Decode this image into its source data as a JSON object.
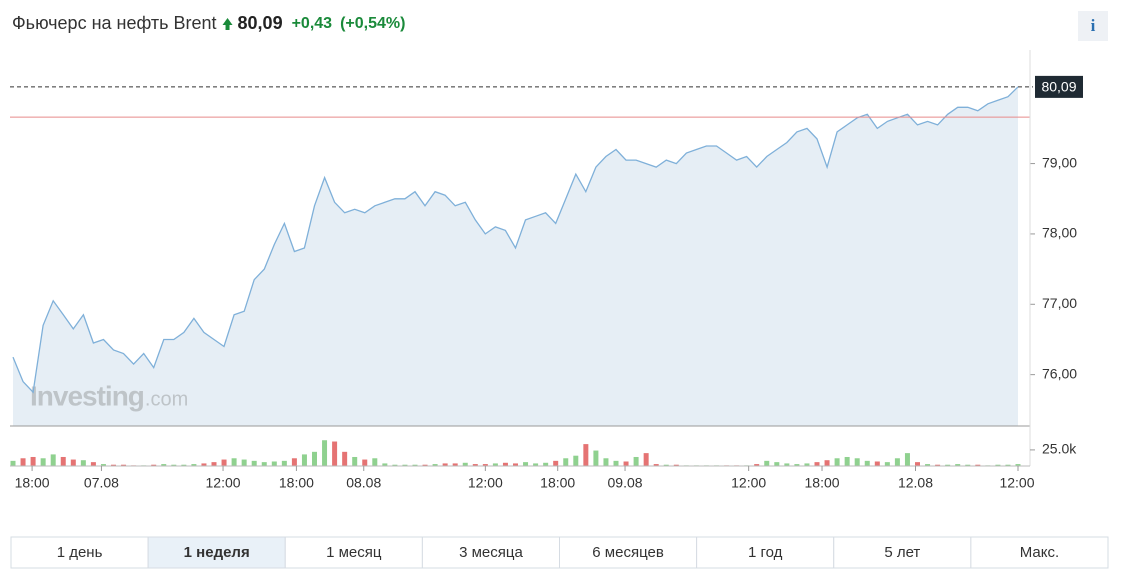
{
  "header": {
    "title": "Фьючерс на нефть Brent",
    "price": "80,09",
    "change": "+0,43",
    "change_pct": "(+0,54%)",
    "info": "i"
  },
  "chart_data": {
    "type": "line",
    "series": [
      {
        "name": "Brent",
        "color": "#7fb0d9",
        "fill": "#e6eef5",
        "values": [
          76.25,
          75.9,
          75.75,
          76.7,
          77.05,
          76.85,
          76.65,
          76.85,
          76.45,
          76.5,
          76.35,
          76.3,
          76.15,
          76.3,
          76.1,
          76.5,
          76.5,
          76.6,
          76.8,
          76.6,
          76.5,
          76.4,
          76.85,
          76.9,
          77.35,
          77.5,
          77.85,
          78.15,
          77.75,
          77.8,
          78.4,
          78.8,
          78.45,
          78.3,
          78.35,
          78.3,
          78.4,
          78.45,
          78.5,
          78.5,
          78.6,
          78.4,
          78.6,
          78.55,
          78.4,
          78.45,
          78.2,
          78.0,
          78.1,
          78.05,
          77.8,
          78.2,
          78.25,
          78.3,
          78.15,
          78.5,
          78.85,
          78.6,
          78.95,
          79.1,
          79.2,
          79.05,
          79.05,
          79.0,
          78.95,
          79.05,
          79.0,
          79.15,
          79.2,
          79.25,
          79.25,
          79.15,
          79.05,
          79.1,
          78.95,
          79.1,
          79.2,
          79.3,
          79.45,
          79.5,
          79.35,
          78.95,
          79.45,
          79.55,
          79.65,
          79.7,
          79.5,
          79.6,
          79.65,
          79.7,
          79.55,
          79.6,
          79.55,
          79.7,
          79.8,
          79.8,
          79.75,
          79.85,
          79.9,
          79.95,
          80.09
        ]
      }
    ],
    "xlim": [
      0,
      100
    ],
    "xticks": [
      {
        "value": 1.9,
        "label": "18:00"
      },
      {
        "value": 8.8,
        "label": "07.08"
      },
      {
        "value": 20.9,
        "label": "12:00"
      },
      {
        "value": 28.2,
        "label": "18:00"
      },
      {
        "value": 34.9,
        "label": "08.08"
      },
      {
        "value": 47,
        "label": "12:00"
      },
      {
        "value": 54.2,
        "label": "18:00"
      },
      {
        "value": 60.9,
        "label": "09.08"
      },
      {
        "value": 73.2,
        "label": "12:00"
      },
      {
        "value": 80.5,
        "label": "18:00"
      },
      {
        "value": 89.8,
        "label": "12.08"
      },
      {
        "value": 100,
        "label": "12:00"
      }
    ],
    "ylim": [
      75.27,
      80.33
    ],
    "yticks": [
      {
        "value": 76,
        "label": "76,00"
      },
      {
        "value": 77,
        "label": "77,00"
      },
      {
        "value": 78,
        "label": "78,00"
      },
      {
        "value": 79,
        "label": "79,00"
      }
    ],
    "reference_line": {
      "value": 79.66,
      "color": "#e88a8a"
    },
    "last_value": {
      "value": 80.09,
      "label": "80,09"
    },
    "watermark_brand": "Investing",
    "watermark_domain": ".com",
    "volume": {
      "up_color": "#8fd18f",
      "down_color": "#e57373",
      "ylim": [
        0,
        59000
      ],
      "yticks": [
        {
          "value": 25000,
          "label": "25.0k"
        }
      ],
      "values": [
        8000,
        12000,
        14000,
        12000,
        18000,
        14000,
        10000,
        9000,
        6000,
        3000,
        2000,
        2000,
        1000,
        1000,
        2000,
        3000,
        2000,
        2000,
        3000,
        4000,
        6000,
        10000,
        12000,
        10000,
        8000,
        6000,
        7000,
        8000,
        12000,
        18000,
        22000,
        40000,
        38000,
        22000,
        14000,
        10000,
        12000,
        4000,
        2000,
        2000,
        2000,
        2000,
        3000,
        4000,
        4000,
        5000,
        3000,
        3000,
        4000,
        5000,
        4000,
        6000,
        4000,
        5000,
        8000,
        12000,
        16000,
        34000,
        24000,
        12000,
        8000,
        7000,
        14000,
        20000,
        3000,
        2000,
        2000,
        1000,
        1000,
        1000,
        1000,
        1000,
        1000,
        1000,
        3000,
        8000,
        6000,
        4000,
        3000,
        4000,
        6000,
        9000,
        12000,
        14000,
        12000,
        8000,
        7000,
        6000,
        12000,
        20000,
        6000,
        3000,
        2000,
        2000,
        3000,
        2000,
        2000,
        1000,
        2000,
        2000,
        3000
      ]
    }
  },
  "range_buttons": {
    "labels": [
      "1 день",
      "1 неделя",
      "1 месяц",
      "3 месяца",
      "6 месяцев",
      "1 год",
      "5 лет",
      "Макс."
    ],
    "active": 1
  }
}
